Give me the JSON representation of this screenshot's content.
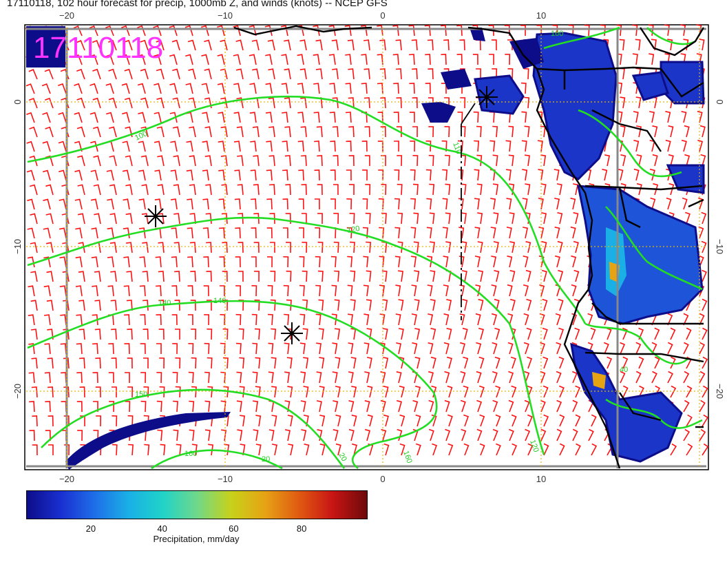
{
  "title": "17110118, 102 hour forecast for precip, 1000mb Z, and winds (knots) -- NCEP GFS",
  "date_stamp": "17110118",
  "axes": {
    "x_ticks": [
      "−20",
      "−10",
      "0",
      "10"
    ],
    "y_ticks": [
      "0",
      "−10",
      "−20"
    ]
  },
  "contour_labels": [
    "100",
    "120",
    "140",
    "140",
    "150",
    "120",
    "160",
    "110",
    "160",
    "20",
    "20",
    "40",
    "160"
  ],
  "colorbar": {
    "label": "Precipitation, mm/day",
    "ticks": [
      "20",
      "40",
      "60",
      "80"
    ],
    "colors": [
      "#0d0d8a",
      "#1a2fd1",
      "#1e6fe8",
      "#1ab0e6",
      "#20d3c8",
      "#6fd88a",
      "#c7d21a",
      "#e6a314",
      "#e05a12",
      "#c81414",
      "#6e0a0a"
    ]
  },
  "map_colors": {
    "wind_barb": "#ff1010",
    "contour": "#22dd22",
    "land_border": "#000000",
    "grid": "#e8b400"
  }
}
